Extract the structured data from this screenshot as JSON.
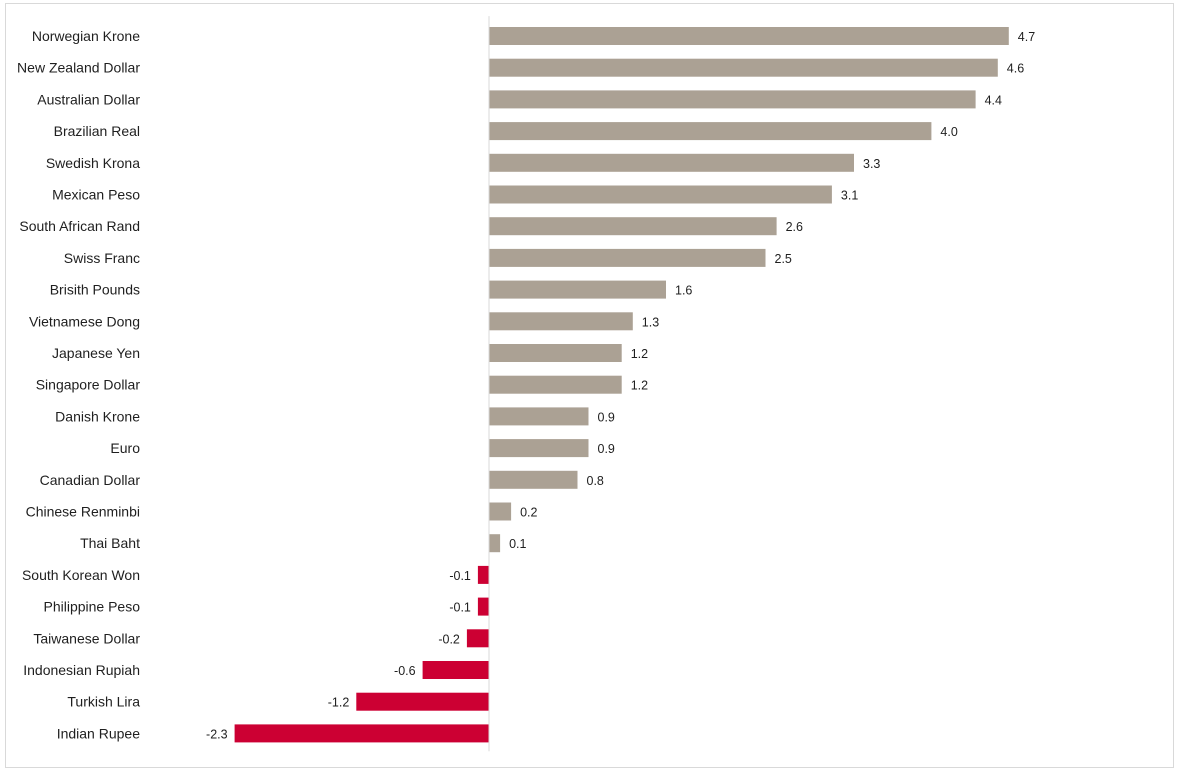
{
  "chart_data": {
    "type": "bar",
    "orientation": "horizontal",
    "title": "",
    "xlabel": "",
    "ylabel": "",
    "grid": false,
    "legend": "none",
    "xlim": [
      -2.3,
      4.7
    ],
    "categories": [
      "Norwegian Krone",
      "New Zealand Dollar",
      "Australian Dollar",
      "Brazilian Real",
      "Swedish Krona",
      "Mexican Peso",
      "South African Rand",
      "Swiss Franc",
      "Brisith Pounds",
      "Vietnamese Dong",
      "Japanese Yen",
      "Singapore Dollar",
      "Danish Krone",
      "Euro",
      "Canadian Dollar",
      "Chinese Renminbi",
      "Thai Baht",
      "South Korean Won",
      "Philippine Peso",
      "Taiwanese Dollar",
      "Indonesian Rupiah",
      "Turkish Lira",
      "Indian Rupee"
    ],
    "values": [
      4.7,
      4.6,
      4.4,
      4.0,
      3.3,
      3.1,
      2.6,
      2.5,
      1.6,
      1.3,
      1.2,
      1.2,
      0.9,
      0.9,
      0.8,
      0.2,
      0.1,
      -0.1,
      -0.1,
      -0.2,
      -0.6,
      -1.2,
      -2.3
    ],
    "value_labels": [
      "4.7",
      "4.6",
      "4.4",
      "4.0",
      "3.3",
      "3.1",
      "2.6",
      "2.5",
      "1.6",
      "1.3",
      "1.2",
      "1.2",
      "0.9",
      "0.9",
      "0.8",
      "0.2",
      "0.1",
      "-0.1",
      "-0.1",
      "-0.2",
      "-0.6",
      "-1.2",
      "-2.3"
    ],
    "colors": {
      "positive": "#aba194",
      "negative": "#cc0033",
      "axis": "#d9d9d9"
    }
  }
}
